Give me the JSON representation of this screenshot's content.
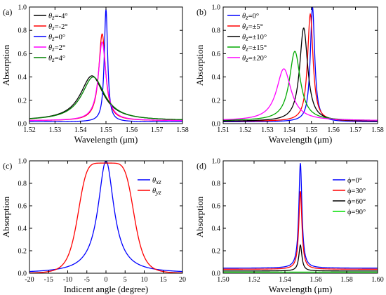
{
  "chart_data": [
    {
      "panel_label": "(a)",
      "type": "line",
      "xlabel": "Wavelength (μm)",
      "ylabel": "Absorption",
      "xlim": [
        1.52,
        1.58
      ],
      "ylim": [
        0.0,
        1.0
      ],
      "xticks": [
        1.52,
        1.53,
        1.54,
        1.55,
        1.56,
        1.57,
        1.58
      ],
      "xtick_labels": [
        "1.52",
        "1.53",
        "1.54",
        "1.55",
        "1.56",
        "1.57",
        "1.58"
      ],
      "yticks": [
        0.0,
        0.2,
        0.4,
        0.6,
        0.8,
        1.0
      ],
      "ytick_labels": [
        "0.0",
        "0.2",
        "0.4",
        "0.6",
        "0.8",
        "1.0"
      ],
      "legend_position": "top-left",
      "grid": false,
      "series": [
        {
          "name": "θz=-4°",
          "color": "#000000",
          "peak_x": 1.5445,
          "peak_y": 0.41,
          "hwhm": 0.0055,
          "baseline": 0.025
        },
        {
          "name": "θz=-2°",
          "color": "#ff0000",
          "peak_x": 1.5485,
          "peak_y": 0.77,
          "hwhm": 0.0016,
          "baseline": 0.025
        },
        {
          "name": "θz=0°",
          "color": "#0000ff",
          "peak_x": 1.55,
          "peak_y": 0.98,
          "hwhm": 0.0008,
          "baseline": 0.015
        },
        {
          "name": "θz=2°",
          "color": "#ff00ff",
          "peak_x": 1.5485,
          "peak_y": 0.7,
          "hwhm": 0.0018,
          "baseline": 0.025
        },
        {
          "name": "θz=4°",
          "color": "#008000",
          "peak_x": 1.545,
          "peak_y": 0.4,
          "hwhm": 0.0055,
          "baseline": 0.025
        }
      ]
    },
    {
      "panel_label": "(b)",
      "type": "line",
      "xlabel": "Wavelength (μm)",
      "ylabel": "Absorption",
      "xlim": [
        1.51,
        1.58
      ],
      "ylim": [
        0.0,
        1.0
      ],
      "xticks": [
        1.51,
        1.52,
        1.53,
        1.54,
        1.55,
        1.56,
        1.57,
        1.58
      ],
      "xtick_labels": [
        "1.51",
        "1.52",
        "1.53",
        "1.54",
        "1.55",
        "1.56",
        "1.57",
        "1.58"
      ],
      "yticks": [
        0.0,
        0.2,
        0.4,
        0.6,
        0.8,
        1.0
      ],
      "ytick_labels": [
        "0.0",
        "0.2",
        "0.4",
        "0.6",
        "0.8",
        "1.0"
      ],
      "legend_position": "top-left",
      "grid": false,
      "series": [
        {
          "name": "θz=0°",
          "color": "#0000ff",
          "peak_x": 1.5505,
          "peak_y": 1.0,
          "hwhm": 0.0012,
          "baseline": 0.015
        },
        {
          "name": "θz=±5°",
          "color": "#ff0000",
          "peak_x": 1.5495,
          "peak_y": 0.94,
          "hwhm": 0.0015,
          "baseline": 0.02
        },
        {
          "name": "θz=±10°",
          "color": "#000000",
          "peak_x": 1.5465,
          "peak_y": 0.82,
          "hwhm": 0.0022,
          "baseline": 0.02
        },
        {
          "name": "θz=±15°",
          "color": "#00aa00",
          "peak_x": 1.5425,
          "peak_y": 0.62,
          "hwhm": 0.003,
          "baseline": 0.025
        },
        {
          "name": "θz=±20°",
          "color": "#ff00ff",
          "peak_x": 1.5375,
          "peak_y": 0.47,
          "hwhm": 0.004,
          "baseline": 0.025
        }
      ]
    },
    {
      "panel_label": "(c)",
      "type": "line",
      "xlabel": "Indicent angle (degree)",
      "ylabel": "Absorption",
      "xlim": [
        -20,
        20
      ],
      "ylim": [
        0.0,
        1.0
      ],
      "xticks": [
        -20,
        -15,
        -10,
        -5,
        0,
        5,
        10,
        15,
        20
      ],
      "xtick_labels": [
        "-20",
        "-15",
        "-10",
        "-5",
        "0",
        "5",
        "10",
        "15",
        "20"
      ],
      "yticks": [
        0.0,
        0.2,
        0.4,
        0.6,
        0.8,
        1.0
      ],
      "ytick_labels": [
        "0.0",
        "0.2",
        "0.4",
        "0.6",
        "0.8",
        "1.0"
      ],
      "legend_position": "top-right",
      "grid": false,
      "series": [
        {
          "name": "θxz",
          "color": "#0000ff",
          "shape": "lorentzian",
          "center": 0,
          "peak_y": 1.0,
          "hwhm": 2.5
        },
        {
          "name": "θyz",
          "color": "#ff0000",
          "shape": "flat-top",
          "center": 0,
          "peak_y": 0.98,
          "halfwidth": 7.5,
          "order": 3
        }
      ]
    },
    {
      "panel_label": "(d)",
      "type": "line",
      "xlabel": "Wavelength (μm)",
      "ylabel": "Absorption",
      "xlim": [
        1.5,
        1.6
      ],
      "ylim": [
        0.0,
        1.0
      ],
      "xticks": [
        1.5,
        1.52,
        1.54,
        1.56,
        1.58,
        1.6
      ],
      "xtick_labels": [
        "1.50",
        "1.52",
        "1.54",
        "1.56",
        "1.58",
        "1.60"
      ],
      "yticks": [
        0.0,
        0.2,
        0.4,
        0.6,
        0.8,
        1.0
      ],
      "ytick_labels": [
        "0.0",
        "0.2",
        "0.4",
        "0.6",
        "0.8",
        "1.0"
      ],
      "legend_position": "top-right",
      "grid": false,
      "series": [
        {
          "name": "ϕ=0°",
          "color": "#0000ff",
          "peak_x": 1.55,
          "peak_y": 0.98,
          "hwhm": 0.0012,
          "baseline": 0.045
        },
        {
          "name": "ϕ=30°",
          "color": "#ff0000",
          "peak_x": 1.55,
          "peak_y": 0.73,
          "hwhm": 0.0012,
          "baseline": 0.035
        },
        {
          "name": "ϕ=60°",
          "color": "#000000",
          "peak_x": 1.55,
          "peak_y": 0.25,
          "hwhm": 0.0012,
          "baseline": 0.02
        },
        {
          "name": "ϕ=90°",
          "color": "#00dd00",
          "peak_x": 1.55,
          "peak_y": 0.01,
          "hwhm": 0.0012,
          "baseline": 0.01
        }
      ]
    }
  ]
}
